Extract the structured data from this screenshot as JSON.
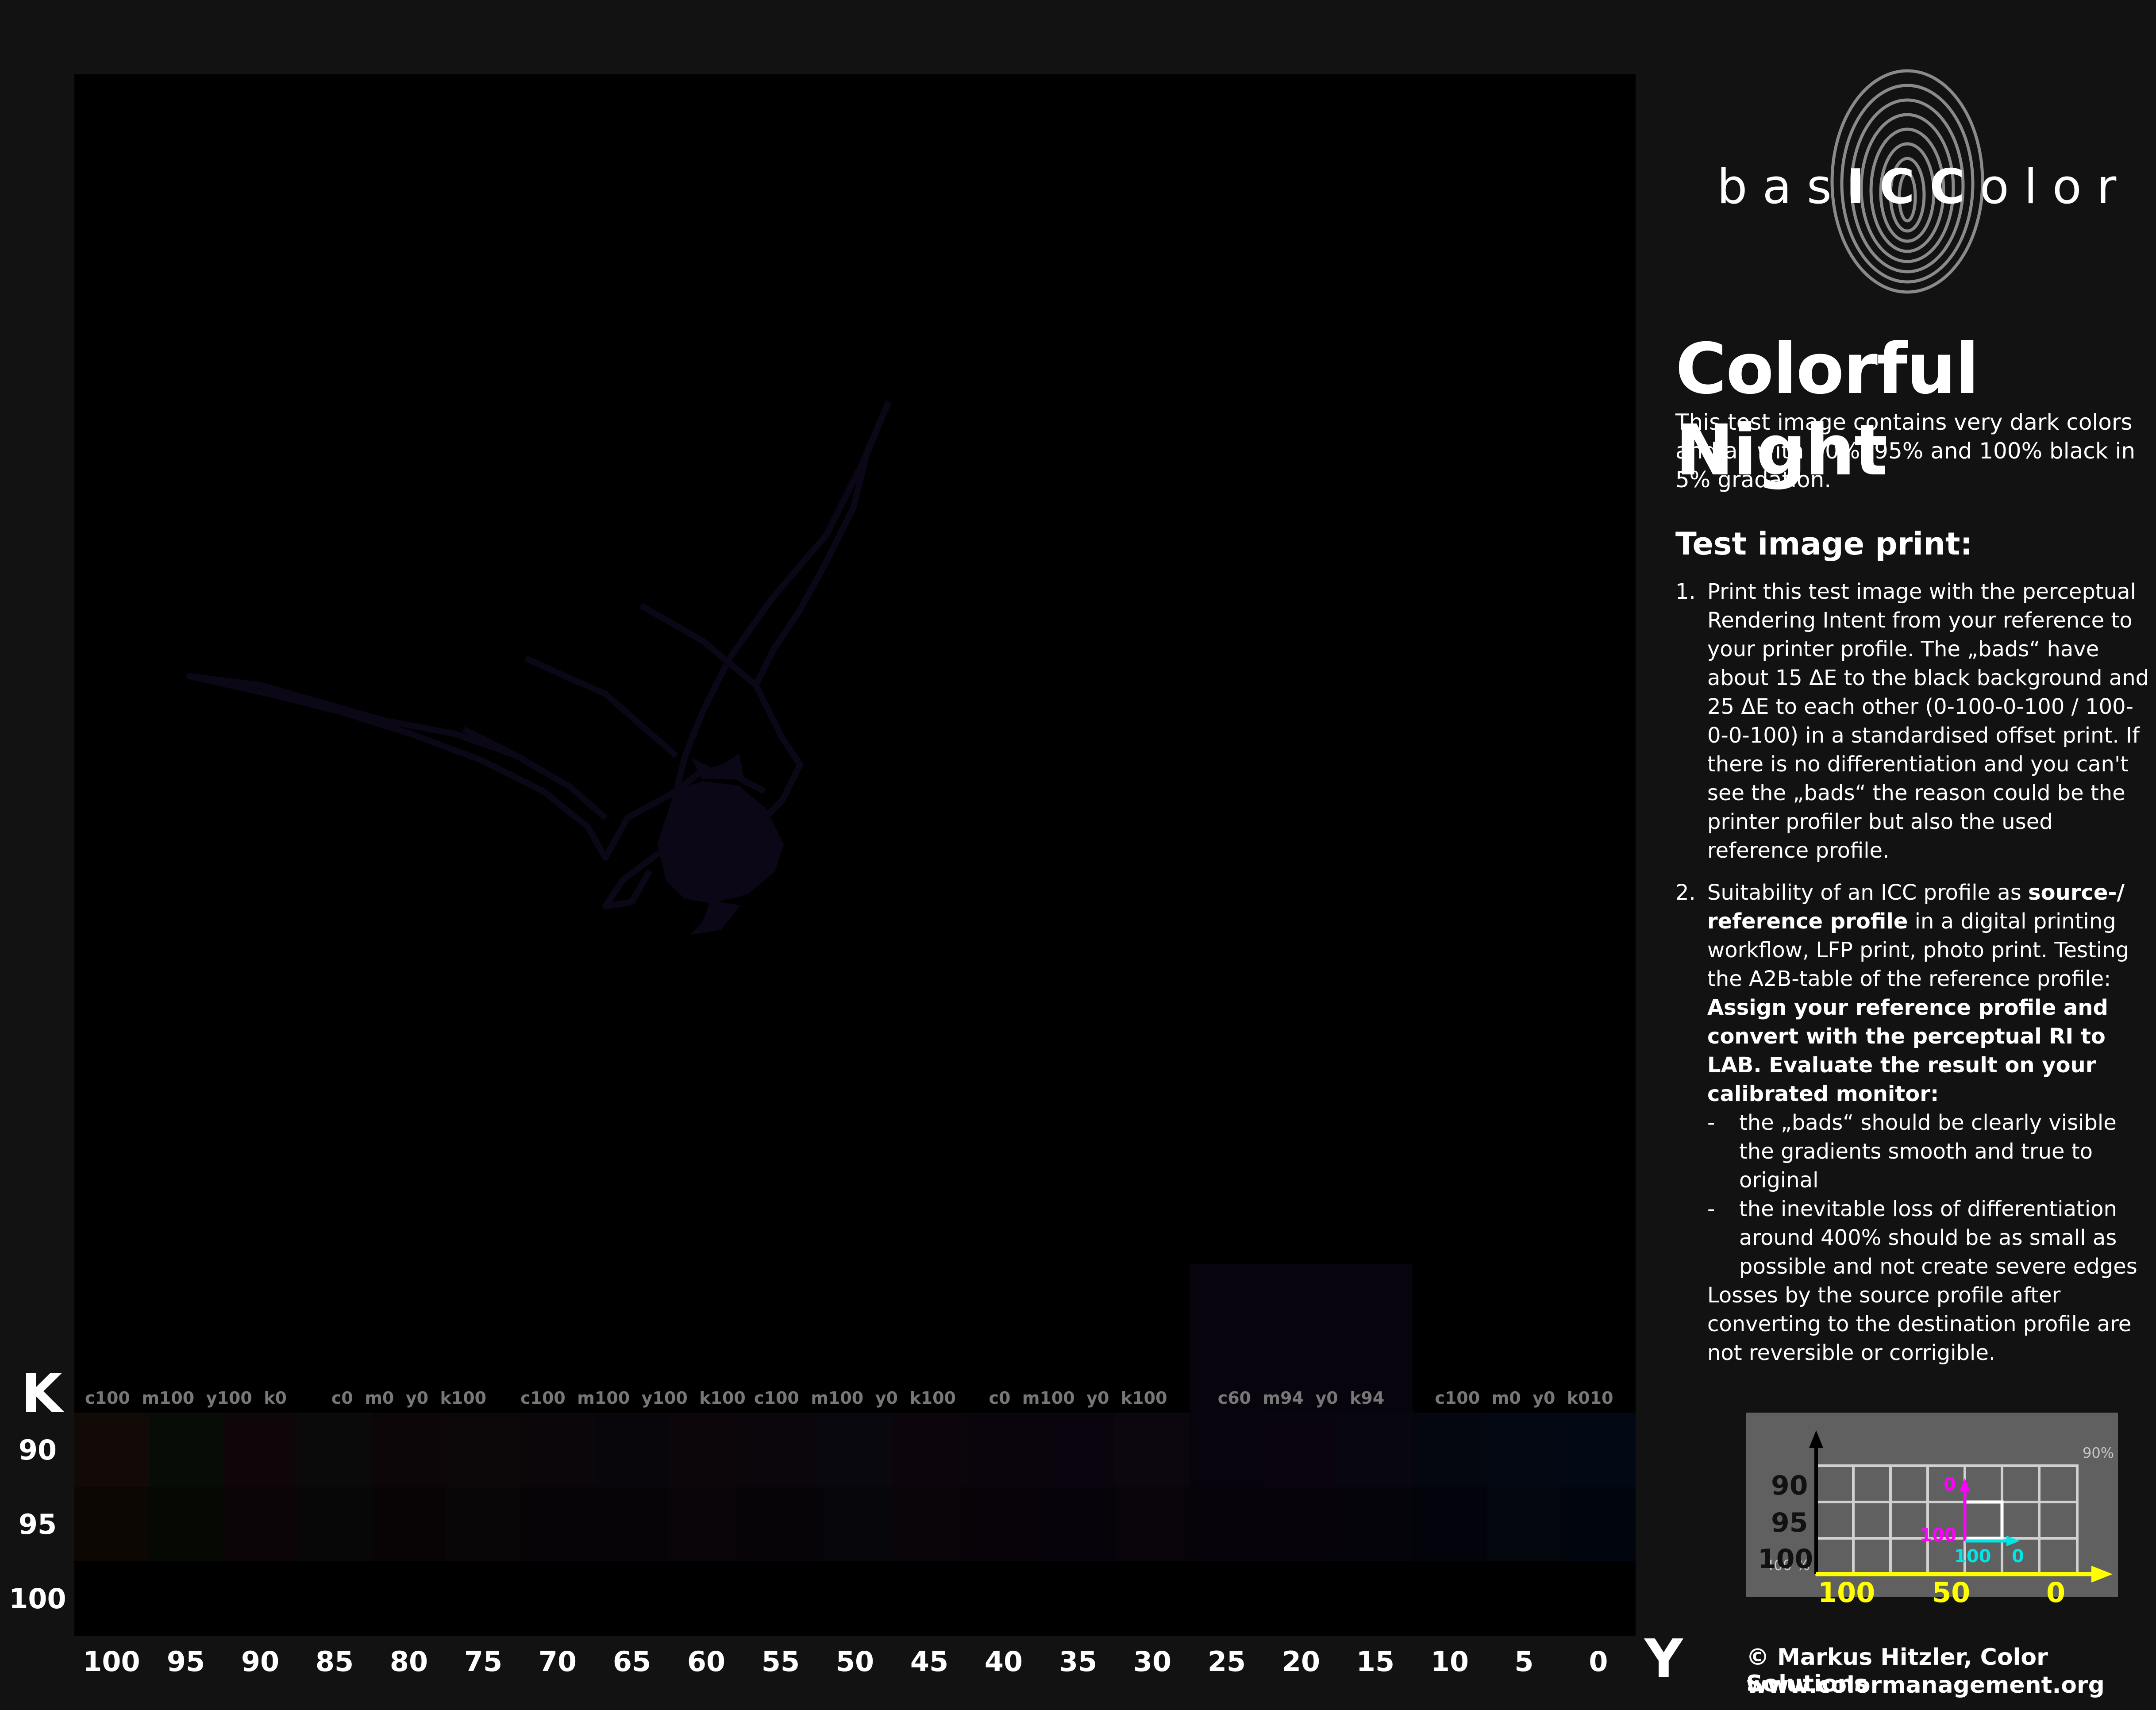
{
  "logo": {
    "text_normal_1": "bas",
    "text_bold": "ICC",
    "text_normal_2": "olor"
  },
  "title": "Colorful Night",
  "intro": "This test image contains very dark colors and all with 90%, 95% and 100% black in 5% gradation.",
  "print_heading": "Test image print:",
  "item1": {
    "num": "1.",
    "text": "Print this test image with the perceptual Rendering Intent from your reference to your printer profile. The „bads“ have about 15 ΔE to the black background and 25 ΔE to each other (0-100-0-100 / 100-0-0-100) in a standardised offset print. If there is no differentiation and you can't see the „bads“ the reason could be the printer profiler but also the used reference profile."
  },
  "item2": {
    "num": "2.",
    "text_a": "Suitability of an ICC profile as ",
    "text_b": "source-/ reference profile",
    "text_c": " in a digital printing workflow, LFP print, photo print. Testing the A2B-table of the reference profile: ",
    "text_d": "Assign your reference profile and convert with the perceptual RI to LAB. Evaluate the result on your calibrated monitor:",
    "bullet1": "the „bads“ should be clearly visible the gradients smooth and true to original",
    "bullet2": "the inevitable loss of differentiation around 400% should be as small as possible and not create severe edges",
    "dash": "-",
    "closing": "Losses by the source profile after converting to the destination profile are not reversible or corrigible."
  },
  "patch_labels": [
    "c100  m100  y100  k0",
    "c0  m0  y0  k100",
    "c100  m100  y100  k100",
    "c100  m100  y0  k100",
    "c0  m100  y0  k100",
    "c60  m94  y0  k94",
    "c100  m0  y0  k010"
  ],
  "k_axis": {
    "letter": "K",
    "values": [
      "90",
      "95",
      "100"
    ]
  },
  "y_axis": {
    "letter": "Y",
    "values": [
      "100",
      "95",
      "90",
      "85",
      "80",
      "75",
      "70",
      "65",
      "60",
      "55",
      "50",
      "45",
      "40",
      "35",
      "30",
      "25",
      "20",
      "15",
      "10",
      "5",
      "0"
    ]
  },
  "legend": {
    "pct90": "90%",
    "pct400": "400 %",
    "k_values": [
      "90",
      "95",
      "100"
    ],
    "x_values": [
      "100",
      "50",
      "0"
    ],
    "magenta_0": "0",
    "magenta_100": "100",
    "cyan_100": "100",
    "cyan_0": "0"
  },
  "copyright": "© Markus Hitzler, Color Solutions",
  "website": "www.colormanagement.org",
  "colors": {
    "background": "#121212",
    "image": "#000000",
    "legend_bg": "#606060",
    "yellow": "#ffff00",
    "magenta": "#ff00ff",
    "cyan": "#00ffff"
  }
}
